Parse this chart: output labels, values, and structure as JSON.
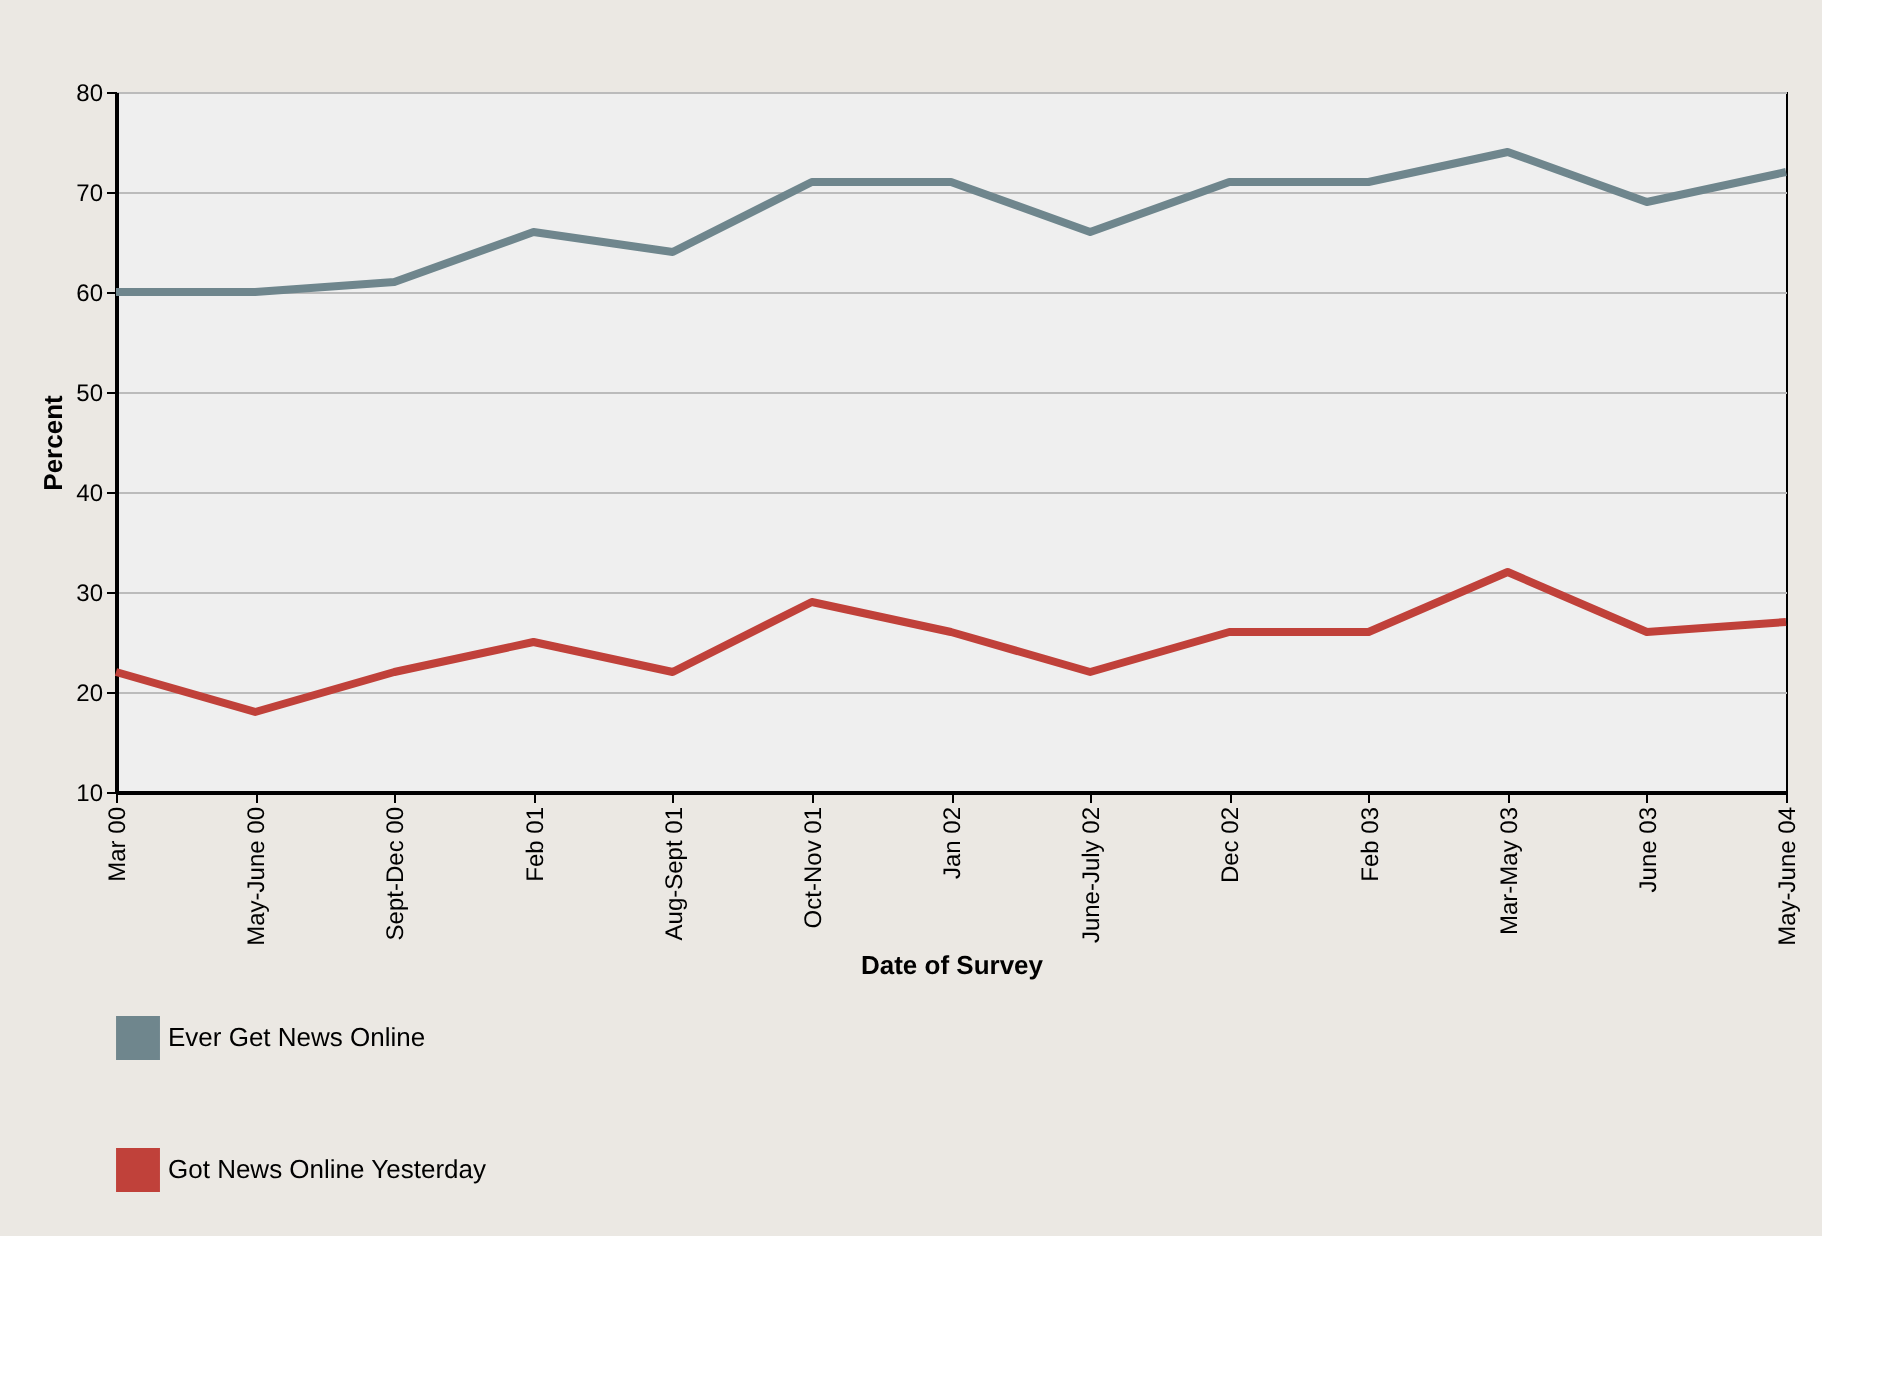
{
  "chart_data": {
    "type": "line",
    "xlabel": "Date of Survey",
    "ylabel": "Percent",
    "categories": [
      "Mar 00",
      "May-June 00",
      "Sept-Dec 00",
      "Feb 01",
      "Aug-Sept 01",
      "Oct-Nov 01",
      "Jan 02",
      "June-July 02",
      "Dec 02",
      "Feb 03",
      "Mar-May 03",
      "June 03",
      "May-June 04"
    ],
    "series": [
      {
        "name": "Ever Get News Online",
        "color": "#6f868d",
        "values": [
          60,
          60,
          61,
          66,
          64,
          71,
          71,
          66,
          71,
          71,
          74,
          69,
          72
        ]
      },
      {
        "name": "Got News Online Yesterday",
        "color": "#c0413a",
        "values": [
          22,
          18,
          22,
          25,
          22,
          29,
          26,
          22,
          26,
          26,
          32,
          26,
          27
        ]
      }
    ],
    "ylim": [
      10,
      80
    ],
    "yticks": [
      10,
      20,
      30,
      40,
      50,
      60,
      70,
      80
    ],
    "grid": "y",
    "legend": "bottom left",
    "marker": "none",
    "line_style": "solid"
  }
}
